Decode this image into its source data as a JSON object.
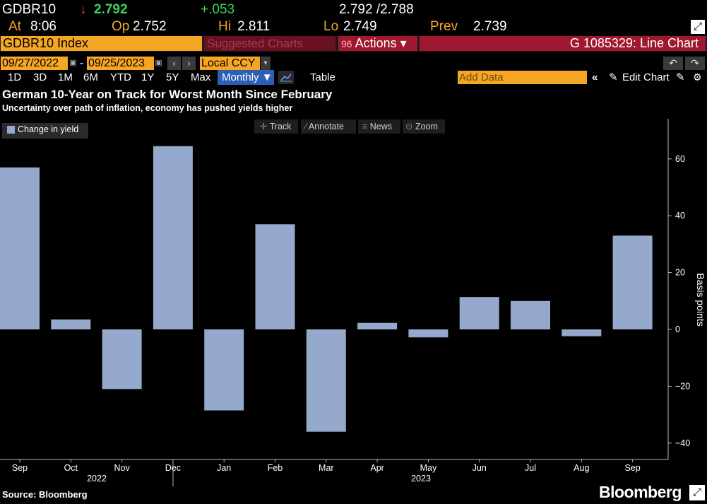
{
  "header": {
    "ticker": "GDBR10",
    "arrow": "↓",
    "last": "2.792",
    "change": "+.053",
    "bid_ask": "2.792 /2.788",
    "at_label": "At",
    "at_value": "8:06",
    "op_label": "Op",
    "op_value": "2.752",
    "hi_label": "Hi",
    "hi_value": "2.811",
    "lo_label": "Lo",
    "lo_value": "2.749",
    "prev_label": "Prev",
    "prev_value": "2.739"
  },
  "command_bar": {
    "index": "GDBR10 Index",
    "suggested": "Suggested Charts",
    "actions_prefix": "96",
    "actions": "Actions ▾",
    "chart_id": "G 1085329: Line Chart"
  },
  "date_range": {
    "start": "09/27/2022",
    "separator": "-",
    "end": "09/25/2023",
    "currency": "Local CCY"
  },
  "toolbar": {
    "periods": [
      "1D",
      "3D",
      "1M",
      "6M",
      "YTD",
      "1Y",
      "5Y",
      "Max"
    ],
    "frequency": "Monthly ▼",
    "table": "Table",
    "add_data_placeholder": "Add Data",
    "edit_chart": "Edit Chart"
  },
  "chart_tools": {
    "track": "Track",
    "annotate": "Annotate",
    "news": "News",
    "zoom": "Zoom"
  },
  "footer": {
    "source": "Source: Bloomberg",
    "brand": "Bloomberg"
  },
  "colors": {
    "bar": "#94a9cb",
    "accent": "#f5a623",
    "positive": "#3ad65a",
    "negative": "#ff3b30"
  },
  "chart_data": {
    "type": "bar",
    "title": "German 10-Year on Track for Worst Month Since February",
    "subtitle": "Uncertainty over path of inflation, economy has pushed yields higher",
    "ylabel": "Basis points",
    "ylim": [
      -44,
      74
    ],
    "yticks": [
      -40,
      -20,
      0,
      20,
      40,
      60
    ],
    "grid": false,
    "legend_position": "top-left",
    "categories": [
      "Sep",
      "Oct",
      "Nov",
      "Dec",
      "Jan",
      "Feb",
      "Mar",
      "Apr",
      "May",
      "Jun",
      "Jul",
      "Aug",
      "Sep"
    ],
    "year_labels": [
      "2022",
      "2023"
    ],
    "series": [
      {
        "name": "Change in yield",
        "values": [
          57,
          3.5,
          -21,
          64.5,
          -28.5,
          37,
          -36,
          2.3,
          -2.8,
          11.4,
          10,
          -2.4,
          33
        ]
      }
    ]
  }
}
